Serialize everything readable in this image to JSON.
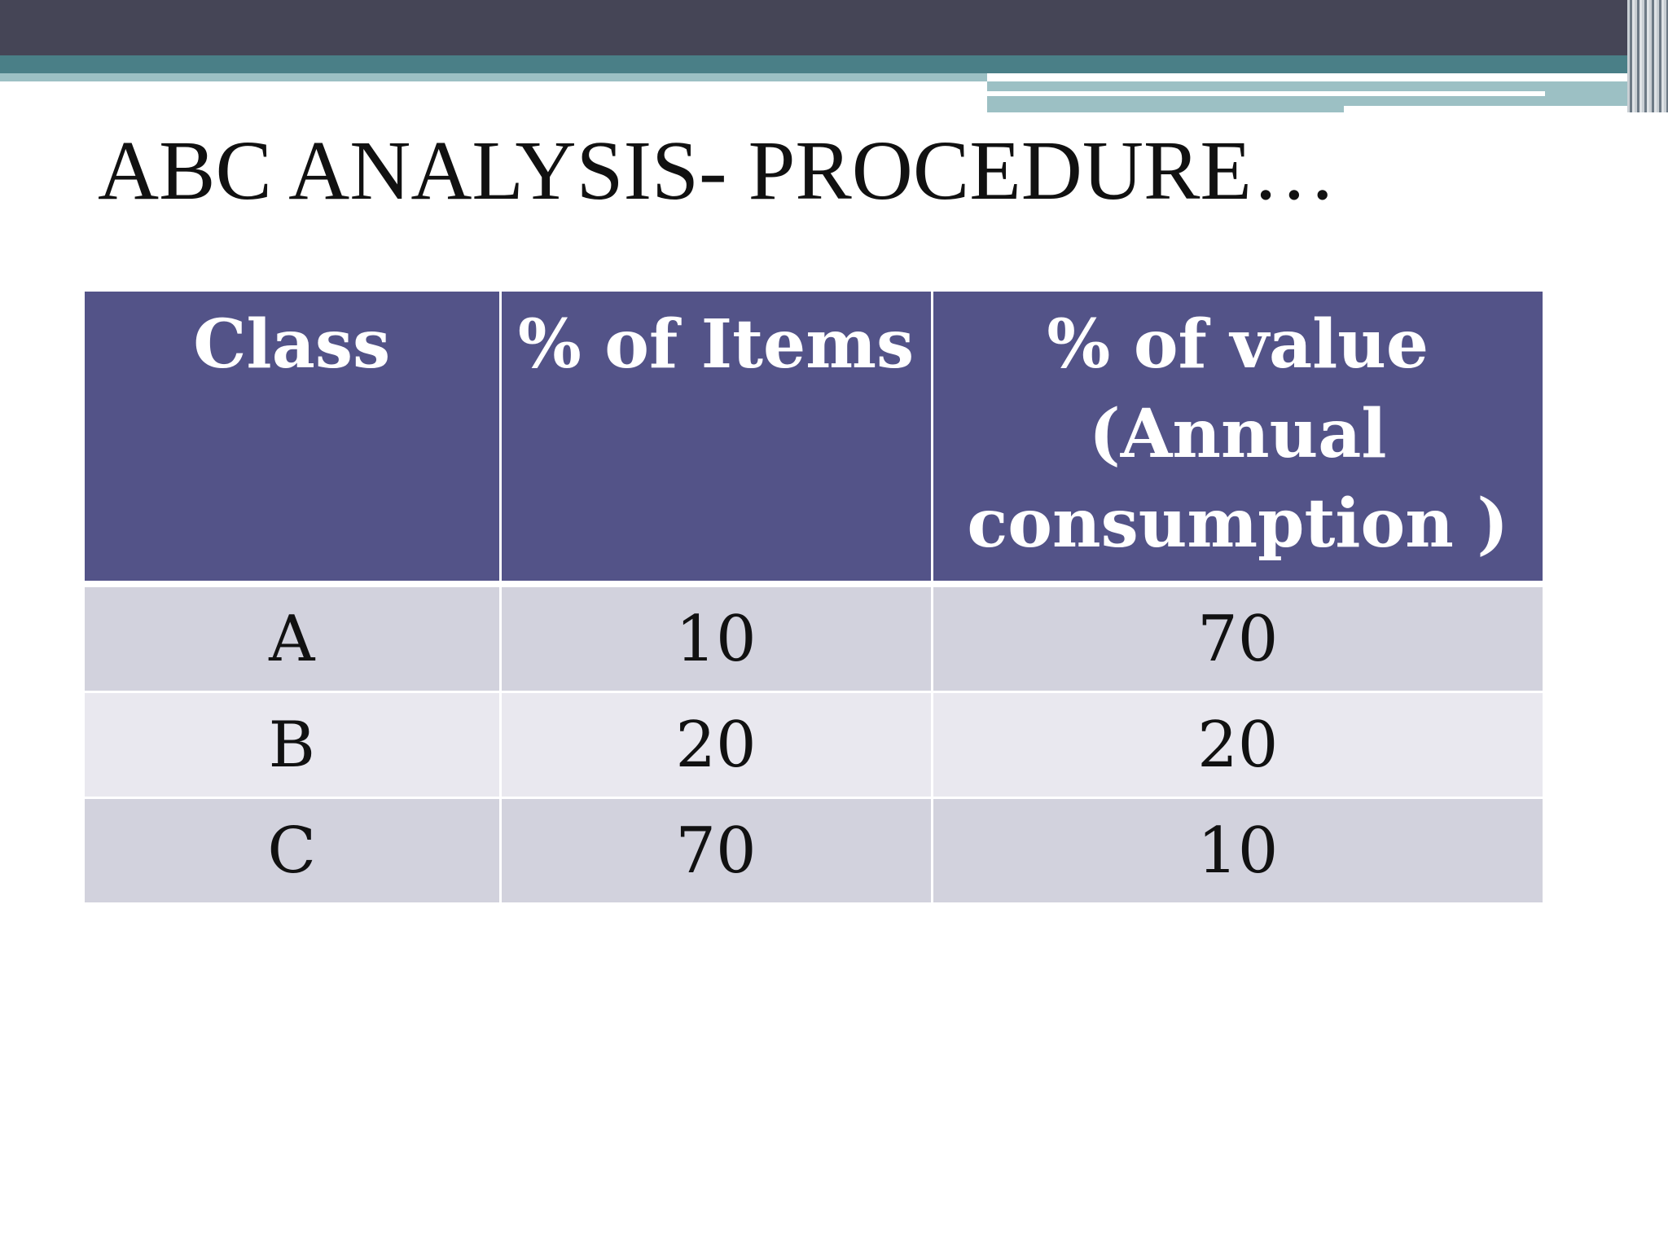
{
  "slide": {
    "title": "ABC ANALYSIS- PROCEDURE…"
  },
  "table": {
    "headers": [
      "Class",
      "% of Items",
      "% of value (Annual consumption )"
    ],
    "rows": [
      [
        "A",
        "10",
        "70"
      ],
      [
        "B",
        "20",
        "20"
      ],
      [
        "C",
        "70",
        "10"
      ]
    ]
  },
  "colors": {
    "header_background": "#535388",
    "row_dark": "#d2d2dd",
    "row_light": "#e9e8ef",
    "banner_dark": "#454556",
    "banner_teal": "#4a7f87"
  }
}
